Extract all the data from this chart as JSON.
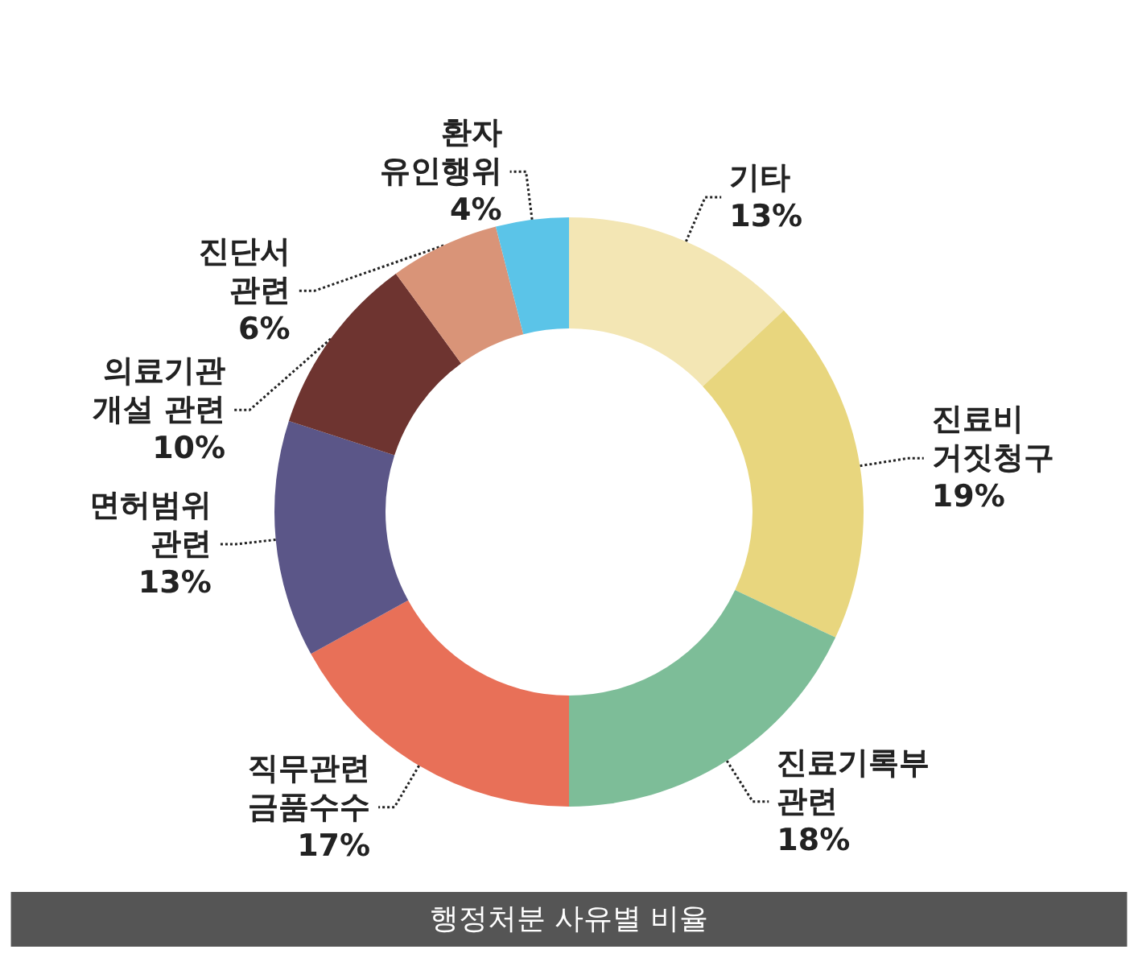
{
  "chart_data": {
    "type": "donut",
    "title": "행정처분 사유별 비율",
    "categories": [
      "기타",
      "진료비\n거짓청구",
      "진료기록부\n관련",
      "직무관련\n금품수수",
      "면허범위\n관련",
      "의료기관\n개설 관련",
      "진단서\n관련",
      "환자\n유인행위"
    ],
    "values": [
      13,
      19,
      18,
      17,
      13,
      10,
      6,
      4
    ],
    "value_labels": [
      "13%",
      "19%",
      "18%",
      "17%",
      "13%",
      "10%",
      "6%",
      "4%"
    ],
    "colors": [
      "#f3e6b4",
      "#e8d67e",
      "#7dbd98",
      "#e87058",
      "#5b5688",
      "#6e3430",
      "#d99478",
      "#5bc4e8"
    ],
    "legend": false
  }
}
